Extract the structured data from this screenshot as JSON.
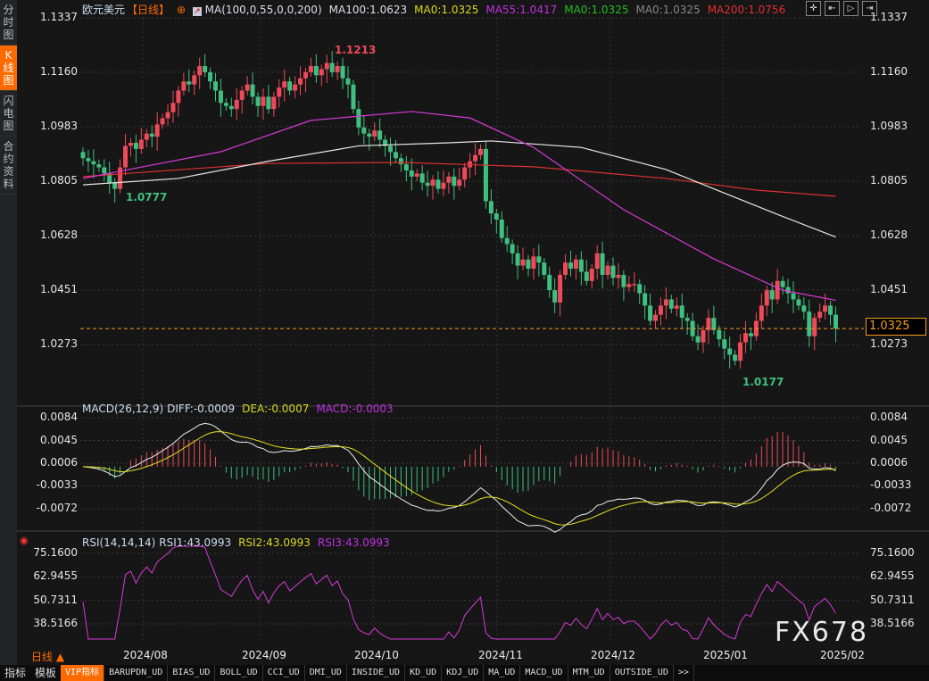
{
  "sidebar": {
    "items": [
      {
        "label": "分时图",
        "active": false
      },
      {
        "label": "K线图",
        "active": true
      },
      {
        "label": "闪电图",
        "active": false
      },
      {
        "label": "合约资料",
        "active": false
      }
    ]
  },
  "header": {
    "symbol": "欧元美元",
    "period": "【日线】",
    "ma_params": "MA(100,0,55,0,0,200)",
    "ma100": "MA100:1.0623",
    "ma0a": "MA0:1.0325",
    "ma55": "MA55:1.0417",
    "ma0b": "MA0:1.0325",
    "ma0c": "MA0:1.0325",
    "ma200": "MA200:1.0756"
  },
  "toolbar": {
    "icons": [
      "crosshair-icon",
      "zoom-left-icon",
      "zoom-right-icon",
      "scroll-end-icon"
    ]
  },
  "price_axis": {
    "ticks": [
      "1.1337",
      "1.1160",
      "1.0983",
      "1.0805",
      "1.0628",
      "1.0451",
      "1.0273"
    ],
    "current": "1.0325"
  },
  "annotations": {
    "high": "1.1213",
    "low1": "1.0777",
    "low2": "1.0177"
  },
  "macd": {
    "params": "MACD(26,12,9)",
    "diff": "DIFF:-0.0009",
    "dea": "DEA:-0.0007",
    "macd": "MACD:-0.0003",
    "ticks": [
      "0.0084",
      "0.0045",
      "0.0006",
      "-0.0033",
      "-0.0072"
    ]
  },
  "rsi": {
    "params": "RSI(14,14,14)",
    "rsi1": "RSI1:43.0993",
    "rsi2": "RSI2:43.0993",
    "rsi3": "RSI3:43.0993",
    "ticks": [
      "75.1600",
      "62.9455",
      "50.7311",
      "38.5166"
    ]
  },
  "time_axis": {
    "period_label": "日线 ▲",
    "ticks": [
      "2024/08",
      "2024/09",
      "2024/10",
      "2024/11",
      "2024/12",
      "2025/01",
      "2025/02"
    ]
  },
  "bottom_tabs": [
    "指标",
    "模板",
    "VIP指标",
    "BARUPDN_UD",
    "BIAS_UD",
    "BOLL_UD",
    "CCI_UD",
    "DMI_UD",
    "INSIDE_UD",
    "KD_UD",
    "KDJ_UD",
    "MA_UD",
    "MACD_UD",
    "MTM_UD",
    "OUTSIDE_UD",
    ">>"
  ],
  "watermark": "FX678",
  "colors": {
    "up": "#ee4a5a",
    "down": "#3fbf80",
    "ma55": "#d63ad6",
    "ma100": "#e8e8e8",
    "ma200": "#e03030",
    "current": "#f59a23",
    "dea": "#e8e020"
  },
  "chart_data": {
    "type": "candlestick",
    "price_range": [
      1.0177,
      1.1337
    ],
    "closes": [
      1.088,
      1.087,
      1.086,
      1.085,
      1.083,
      1.08,
      1.078,
      1.085,
      1.092,
      1.093,
      1.091,
      1.094,
      1.096,
      1.095,
      1.099,
      1.101,
      1.103,
      1.106,
      1.11,
      1.113,
      1.112,
      1.115,
      1.118,
      1.116,
      1.113,
      1.11,
      1.106,
      1.105,
      1.104,
      1.107,
      1.11,
      1.112,
      1.108,
      1.105,
      1.108,
      1.104,
      1.108,
      1.111,
      1.113,
      1.11,
      1.112,
      1.114,
      1.116,
      1.118,
      1.115,
      1.117,
      1.119,
      1.116,
      1.118,
      1.114,
      1.112,
      1.104,
      1.098,
      1.096,
      1.095,
      1.097,
      1.094,
      1.092,
      1.09,
      1.088,
      1.086,
      1.084,
      1.082,
      1.083,
      1.08,
      1.079,
      1.081,
      1.078,
      1.08,
      1.082,
      1.079,
      1.081,
      1.085,
      1.087,
      1.089,
      1.091,
      1.074,
      1.07,
      1.068,
      1.062,
      1.06,
      1.057,
      1.053,
      1.055,
      1.052,
      1.056,
      1.054,
      1.05,
      1.045,
      1.041,
      1.05,
      1.054,
      1.052,
      1.055,
      1.051,
      1.048,
      1.052,
      1.057,
      1.05,
      1.053,
      1.049,
      1.05,
      1.046,
      1.047,
      1.047,
      1.044,
      1.04,
      1.035,
      1.037,
      1.04,
      1.042,
      1.039,
      1.04,
      1.036,
      1.035,
      1.03,
      1.028,
      1.032,
      1.036,
      1.032,
      1.029,
      1.026,
      1.024,
      1.022,
      1.028,
      1.031,
      1.03,
      1.035,
      1.04,
      1.045,
      1.042,
      1.048,
      1.046,
      1.044,
      1.042,
      1.04,
      1.038,
      1.03,
      1.036,
      1.038,
      1.04,
      1.037,
      1.0325
    ],
    "ma55": [
      [
        0,
        1.0814
      ],
      [
        26,
        1.0901
      ],
      [
        43,
        1.1003
      ],
      [
        62,
        1.1032
      ],
      [
        73,
        1.1011
      ],
      [
        85,
        1.0915
      ],
      [
        102,
        1.0712
      ],
      [
        119,
        1.0552
      ],
      [
        132,
        1.045
      ],
      [
        142,
        1.0417
      ]
    ],
    "ma100": [
      [
        0,
        1.0793
      ],
      [
        18,
        1.0814
      ],
      [
        35,
        1.087
      ],
      [
        52,
        1.092
      ],
      [
        69,
        1.093
      ],
      [
        77,
        1.0936
      ],
      [
        94,
        1.0915
      ],
      [
        110,
        1.0843
      ],
      [
        119,
        1.078
      ],
      [
        131,
        1.0697
      ],
      [
        142,
        1.0623
      ]
    ],
    "ma200": [
      [
        0,
        1.082
      ],
      [
        35,
        1.0863
      ],
      [
        60,
        1.0866
      ],
      [
        85,
        1.0852
      ],
      [
        110,
        1.0814
      ],
      [
        127,
        1.0776
      ],
      [
        142,
        1.0756
      ]
    ],
    "macd_range": [
      -0.0072,
      0.0084
    ],
    "rsi_range": [
      38.5166,
      75.16
    ]
  }
}
